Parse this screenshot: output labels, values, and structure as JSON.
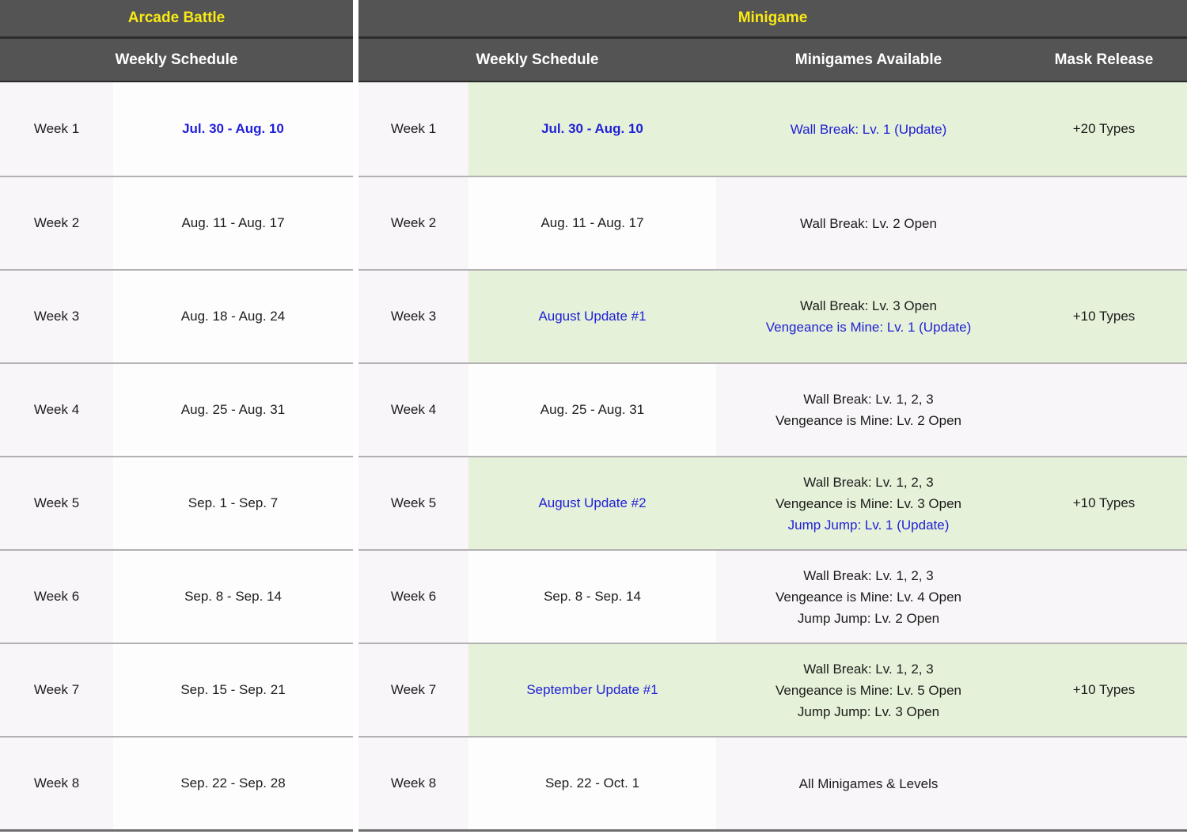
{
  "colors": {
    "header_bg": "#545454",
    "title_yellow": "#f9ea16",
    "header_text": "#ffffff",
    "accent_blue": "#1f1fd8",
    "highlight_green": "#e5f1d8",
    "week_col_tint": "#f9f6f9",
    "data_col_tint": "#f8f6f8",
    "cell_white": "#fefdfe",
    "row_line": "#b3b1b3",
    "text_black": "#1c1c1c"
  },
  "arcade_battle": {
    "title": "Arcade Battle",
    "columns": [
      "Weekly Schedule"
    ],
    "rows": [
      {
        "week": "Week 1",
        "schedule": "Jul. 30 - Aug. 10",
        "schedule_style": "blue-bold"
      },
      {
        "week": "Week 2",
        "schedule": "Aug. 11 - Aug. 17",
        "schedule_style": ""
      },
      {
        "week": "Week 3",
        "schedule": "Aug. 18 - Aug. 24",
        "schedule_style": ""
      },
      {
        "week": "Week 4",
        "schedule": "Aug. 25 - Aug. 31",
        "schedule_style": ""
      },
      {
        "week": "Week 5",
        "schedule": "Sep. 1 - Sep. 7",
        "schedule_style": ""
      },
      {
        "week": "Week 6",
        "schedule": "Sep. 8 - Sep. 14",
        "schedule_style": ""
      },
      {
        "week": "Week 7",
        "schedule": "Sep. 15 - Sep. 21",
        "schedule_style": ""
      },
      {
        "week": "Week 8",
        "schedule": "Sep. 22 - Sep. 28",
        "schedule_style": ""
      }
    ]
  },
  "minigame": {
    "title": "Minigame",
    "columns": [
      "Weekly Schedule",
      "Minigames Available",
      "Mask Release"
    ],
    "rows": [
      {
        "week": "Week 1",
        "schedule": "Jul. 30 - Aug. 10",
        "schedule_style": "blue-bold",
        "row_style": "hl",
        "minigames": [
          {
            "text": "Wall Break: Lv. 1 (Update)",
            "style": "blue"
          }
        ],
        "mask_release": "+20 Types"
      },
      {
        "week": "Week 2",
        "schedule": "Aug. 11 - Aug. 17",
        "schedule_style": "",
        "row_style": "",
        "minigames": [
          {
            "text": "Wall Break: Lv. 2 Open",
            "style": ""
          }
        ],
        "mask_release": ""
      },
      {
        "week": "Week 3",
        "schedule": "August Update #1",
        "schedule_style": "blue",
        "row_style": "hl",
        "minigames": [
          {
            "text": "Wall Break: Lv. 3 Open",
            "style": ""
          },
          {
            "text": "Vengeance is Mine: Lv. 1 (Update)",
            "style": "blue"
          }
        ],
        "mask_release": "+10 Types"
      },
      {
        "week": "Week 4",
        "schedule": "Aug. 25 - Aug. 31",
        "schedule_style": "",
        "row_style": "",
        "minigames": [
          {
            "text": "Wall Break: Lv. 1, 2, 3",
            "style": ""
          },
          {
            "text": "Vengeance is Mine: Lv. 2 Open",
            "style": ""
          }
        ],
        "mask_release": ""
      },
      {
        "week": "Week 5",
        "schedule": "August Update #2",
        "schedule_style": "blue",
        "row_style": "hl",
        "minigames": [
          {
            "text": "Wall Break: Lv. 1, 2, 3",
            "style": ""
          },
          {
            "text": "Vengeance is Mine: Lv. 3 Open",
            "style": ""
          },
          {
            "text": "Jump Jump: Lv. 1 (Update)",
            "style": "blue"
          }
        ],
        "mask_release": "+10 Types"
      },
      {
        "week": "Week 6",
        "schedule": "Sep. 8 - Sep. 14",
        "schedule_style": "",
        "row_style": "",
        "minigames": [
          {
            "text": "Wall Break: Lv. 1, 2, 3",
            "style": ""
          },
          {
            "text": "Vengeance is Mine: Lv. 4 Open",
            "style": ""
          },
          {
            "text": "Jump Jump: Lv. 2 Open",
            "style": ""
          }
        ],
        "mask_release": ""
      },
      {
        "week": "Week 7",
        "schedule": "September Update #1",
        "schedule_style": "blue",
        "row_style": "hl",
        "minigames": [
          {
            "text": "Wall Break: Lv. 1, 2, 3",
            "style": ""
          },
          {
            "text": "Vengeance is Mine: Lv. 5 Open",
            "style": ""
          },
          {
            "text": "Jump Jump: Lv. 3 Open",
            "style": ""
          }
        ],
        "mask_release": "+10 Types"
      },
      {
        "week": "Week 8",
        "schedule": "Sep. 22 - Oct. 1",
        "schedule_style": "",
        "row_style": "",
        "minigames": [
          {
            "text": "All Minigames & Levels",
            "style": ""
          }
        ],
        "mask_release": ""
      }
    ]
  }
}
